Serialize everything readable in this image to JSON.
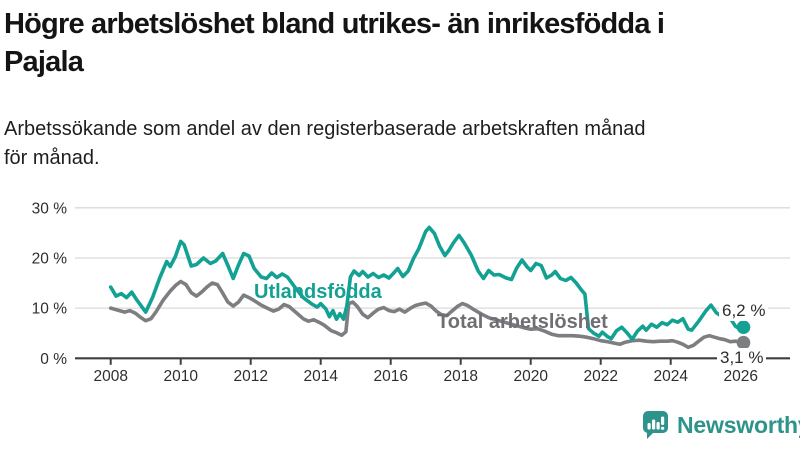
{
  "page": {
    "title_line1": "Högre arbetslöshet bland utrikes- än inrikesfödda i",
    "title_line2": "Pajala",
    "subtitle_line1": "Arbetssökande som andel av den registerbaserade arbetskraften månad",
    "subtitle_line2": "för månad."
  },
  "chart_data": {
    "type": "line",
    "unit": "%",
    "grid": true,
    "x_axis": {
      "ticks": [
        2008,
        2010,
        2012,
        2014,
        2016,
        2018,
        2020,
        2022,
        2024,
        2026
      ],
      "tick_labels": [
        "2008",
        "2010",
        "2012",
        "2014",
        "2016",
        "2018",
        "2020",
        "2022",
        "2024",
        "2026"
      ],
      "range": [
        2007,
        2027.4
      ]
    },
    "y_axis": {
      "ticks": [
        0,
        10,
        20,
        30
      ],
      "tick_labels": [
        "0 %",
        "10 %",
        "20 %",
        "30 %"
      ],
      "range": [
        0,
        30
      ]
    },
    "axis_color": "#3f3f41",
    "grid_color": "#dadada",
    "series": [
      {
        "name": "Utlandsfödda",
        "color": "#12a193",
        "label_color": "#12a193",
        "end_label": "6,2 %",
        "end_value": 6.2,
        "points": [
          [
            2008.0,
            14.2
          ],
          [
            2008.15,
            12.4
          ],
          [
            2008.3,
            12.9
          ],
          [
            2008.45,
            12.1
          ],
          [
            2008.6,
            13.2
          ],
          [
            2008.75,
            11.6
          ],
          [
            2009.0,
            9.2
          ],
          [
            2009.2,
            12.2
          ],
          [
            2009.4,
            16.0
          ],
          [
            2009.6,
            19.3
          ],
          [
            2009.7,
            18.3
          ],
          [
            2009.85,
            20.3
          ],
          [
            2010.0,
            23.3
          ],
          [
            2010.1,
            22.6
          ],
          [
            2010.3,
            18.4
          ],
          [
            2010.45,
            18.7
          ],
          [
            2010.65,
            20.0
          ],
          [
            2010.85,
            18.9
          ],
          [
            2011.0,
            19.4
          ],
          [
            2011.2,
            20.9
          ],
          [
            2011.35,
            18.5
          ],
          [
            2011.5,
            15.9
          ],
          [
            2011.65,
            18.6
          ],
          [
            2011.8,
            20.9
          ],
          [
            2011.95,
            20.4
          ],
          [
            2012.1,
            17.9
          ],
          [
            2012.3,
            16.2
          ],
          [
            2012.45,
            15.9
          ],
          [
            2012.6,
            17.0
          ],
          [
            2012.75,
            16.1
          ],
          [
            2012.9,
            16.8
          ],
          [
            2013.05,
            16.2
          ],
          [
            2013.25,
            14.3
          ],
          [
            2013.5,
            12.1
          ],
          [
            2013.75,
            10.8
          ],
          [
            2013.9,
            10.2
          ],
          [
            2014.0,
            10.9
          ],
          [
            2014.15,
            9.8
          ],
          [
            2014.25,
            8.3
          ],
          [
            2014.35,
            9.5
          ],
          [
            2014.45,
            7.8
          ],
          [
            2014.55,
            8.9
          ],
          [
            2014.65,
            7.8
          ],
          [
            2014.75,
            10.5
          ],
          [
            2014.85,
            16.2
          ],
          [
            2014.95,
            17.4
          ],
          [
            2015.1,
            16.5
          ],
          [
            2015.2,
            17.3
          ],
          [
            2015.35,
            16.2
          ],
          [
            2015.5,
            16.9
          ],
          [
            2015.65,
            16.1
          ],
          [
            2015.8,
            16.6
          ],
          [
            2015.95,
            16.0
          ],
          [
            2016.1,
            17.1
          ],
          [
            2016.2,
            17.9
          ],
          [
            2016.35,
            16.3
          ],
          [
            2016.5,
            17.4
          ],
          [
            2016.65,
            19.9
          ],
          [
            2016.8,
            21.8
          ],
          [
            2017.0,
            25.3
          ],
          [
            2017.1,
            26.1
          ],
          [
            2017.25,
            24.9
          ],
          [
            2017.4,
            22.3
          ],
          [
            2017.55,
            20.5
          ],
          [
            2017.65,
            21.4
          ],
          [
            2017.8,
            23.1
          ],
          [
            2017.95,
            24.5
          ],
          [
            2018.1,
            23.0
          ],
          [
            2018.3,
            20.6
          ],
          [
            2018.5,
            17.4
          ],
          [
            2018.65,
            15.9
          ],
          [
            2018.8,
            17.5
          ],
          [
            2018.95,
            16.6
          ],
          [
            2019.1,
            16.7
          ],
          [
            2019.3,
            16.0
          ],
          [
            2019.45,
            15.7
          ],
          [
            2019.6,
            18.0
          ],
          [
            2019.75,
            19.6
          ],
          [
            2019.9,
            18.2
          ],
          [
            2020.0,
            17.5
          ],
          [
            2020.15,
            18.9
          ],
          [
            2020.3,
            18.5
          ],
          [
            2020.45,
            16.0
          ],
          [
            2020.6,
            16.6
          ],
          [
            2020.7,
            17.3
          ],
          [
            2020.85,
            15.9
          ],
          [
            2021.0,
            15.5
          ],
          [
            2021.15,
            16.1
          ],
          [
            2021.3,
            15.0
          ],
          [
            2021.45,
            13.6
          ],
          [
            2021.55,
            12.8
          ],
          [
            2021.65,
            5.9
          ],
          [
            2021.8,
            5.0
          ],
          [
            2021.95,
            4.4
          ],
          [
            2022.05,
            5.2
          ],
          [
            2022.2,
            4.3
          ],
          [
            2022.3,
            3.9
          ],
          [
            2022.45,
            5.5
          ],
          [
            2022.6,
            6.2
          ],
          [
            2022.75,
            5.1
          ],
          [
            2022.9,
            3.8
          ],
          [
            2023.05,
            5.4
          ],
          [
            2023.2,
            6.4
          ],
          [
            2023.3,
            5.6
          ],
          [
            2023.45,
            6.8
          ],
          [
            2023.6,
            6.2
          ],
          [
            2023.75,
            7.1
          ],
          [
            2023.9,
            6.7
          ],
          [
            2024.05,
            7.6
          ],
          [
            2024.2,
            7.2
          ],
          [
            2024.35,
            7.9
          ],
          [
            2024.5,
            5.8
          ],
          [
            2024.6,
            5.6
          ],
          [
            2024.8,
            7.4
          ],
          [
            2025.0,
            9.4
          ],
          [
            2025.15,
            10.6
          ],
          [
            2025.3,
            9.1
          ],
          [
            2025.45,
            8.4
          ],
          [
            2025.55,
            8.9
          ],
          [
            2025.7,
            8.0
          ],
          [
            2025.85,
            6.4
          ],
          [
            2025.95,
            5.9
          ],
          [
            2026.08,
            6.2
          ]
        ]
      },
      {
        "name": "Total arbetslöshet",
        "color": "#7d7e81",
        "label_color": "#6e6f73",
        "end_label": "3,1 %",
        "end_value": 3.1,
        "points": [
          [
            2008.0,
            10.0
          ],
          [
            2008.2,
            9.6
          ],
          [
            2008.4,
            9.2
          ],
          [
            2008.55,
            9.5
          ],
          [
            2008.7,
            9.0
          ],
          [
            2008.85,
            8.2
          ],
          [
            2009.0,
            7.5
          ],
          [
            2009.15,
            7.9
          ],
          [
            2009.3,
            9.3
          ],
          [
            2009.5,
            11.6
          ],
          [
            2009.7,
            13.4
          ],
          [
            2009.85,
            14.5
          ],
          [
            2010.0,
            15.3
          ],
          [
            2010.15,
            14.7
          ],
          [
            2010.3,
            13.1
          ],
          [
            2010.45,
            12.4
          ],
          [
            2010.6,
            13.2
          ],
          [
            2010.75,
            14.2
          ],
          [
            2010.9,
            15.0
          ],
          [
            2011.05,
            14.7
          ],
          [
            2011.2,
            13.0
          ],
          [
            2011.35,
            11.2
          ],
          [
            2011.5,
            10.4
          ],
          [
            2011.65,
            11.2
          ],
          [
            2011.8,
            12.6
          ],
          [
            2011.95,
            12.1
          ],
          [
            2012.1,
            11.5
          ],
          [
            2012.3,
            10.6
          ],
          [
            2012.5,
            9.9
          ],
          [
            2012.65,
            9.4
          ],
          [
            2012.8,
            9.8
          ],
          [
            2012.95,
            10.7
          ],
          [
            2013.1,
            10.3
          ],
          [
            2013.3,
            9.1
          ],
          [
            2013.5,
            7.9
          ],
          [
            2013.65,
            7.4
          ],
          [
            2013.8,
            7.7
          ],
          [
            2013.95,
            7.2
          ],
          [
            2014.1,
            6.6
          ],
          [
            2014.3,
            5.5
          ],
          [
            2014.45,
            5.1
          ],
          [
            2014.6,
            4.6
          ],
          [
            2014.72,
            5.3
          ],
          [
            2014.8,
            10.9
          ],
          [
            2014.92,
            11.2
          ],
          [
            2015.05,
            10.3
          ],
          [
            2015.2,
            8.8
          ],
          [
            2015.35,
            8.1
          ],
          [
            2015.5,
            9.0
          ],
          [
            2015.65,
            9.8
          ],
          [
            2015.8,
            10.1
          ],
          [
            2015.95,
            9.5
          ],
          [
            2016.1,
            9.3
          ],
          [
            2016.25,
            9.8
          ],
          [
            2016.4,
            9.2
          ],
          [
            2016.55,
            9.9
          ],
          [
            2016.7,
            10.5
          ],
          [
            2016.85,
            10.8
          ],
          [
            2017.0,
            11.0
          ],
          [
            2017.15,
            10.4
          ],
          [
            2017.3,
            9.4
          ],
          [
            2017.45,
            8.7
          ],
          [
            2017.6,
            8.5
          ],
          [
            2017.75,
            9.4
          ],
          [
            2017.9,
            10.3
          ],
          [
            2018.05,
            10.9
          ],
          [
            2018.2,
            10.5
          ],
          [
            2018.4,
            9.6
          ],
          [
            2018.6,
            8.8
          ],
          [
            2018.8,
            8.1
          ],
          [
            2019.0,
            7.7
          ],
          [
            2019.2,
            7.3
          ],
          [
            2019.4,
            6.9
          ],
          [
            2019.6,
            6.5
          ],
          [
            2019.8,
            6.1
          ],
          [
            2020.0,
            5.8
          ],
          [
            2020.2,
            5.9
          ],
          [
            2020.4,
            5.4
          ],
          [
            2020.6,
            4.8
          ],
          [
            2020.8,
            4.5
          ],
          [
            2021.0,
            4.5
          ],
          [
            2021.2,
            4.5
          ],
          [
            2021.4,
            4.4
          ],
          [
            2021.6,
            4.2
          ],
          [
            2021.8,
            3.9
          ],
          [
            2022.0,
            3.5
          ],
          [
            2022.2,
            3.3
          ],
          [
            2022.4,
            3.0
          ],
          [
            2022.55,
            2.8
          ],
          [
            2022.7,
            3.2
          ],
          [
            2022.9,
            3.5
          ],
          [
            2023.1,
            3.6
          ],
          [
            2023.3,
            3.4
          ],
          [
            2023.5,
            3.3
          ],
          [
            2023.7,
            3.4
          ],
          [
            2023.9,
            3.4
          ],
          [
            2024.05,
            3.5
          ],
          [
            2024.2,
            3.2
          ],
          [
            2024.35,
            2.8
          ],
          [
            2024.5,
            2.2
          ],
          [
            2024.65,
            2.6
          ],
          [
            2024.8,
            3.4
          ],
          [
            2024.95,
            4.2
          ],
          [
            2025.1,
            4.5
          ],
          [
            2025.25,
            4.2
          ],
          [
            2025.4,
            3.9
          ],
          [
            2025.55,
            3.7
          ],
          [
            2025.7,
            3.3
          ],
          [
            2025.85,
            3.4
          ],
          [
            2026.08,
            3.1
          ]
        ]
      }
    ]
  },
  "branding": {
    "name": "Newsworthy",
    "color": "#2d938b",
    "icon": "speech-bubble-bar-chart-icon"
  }
}
